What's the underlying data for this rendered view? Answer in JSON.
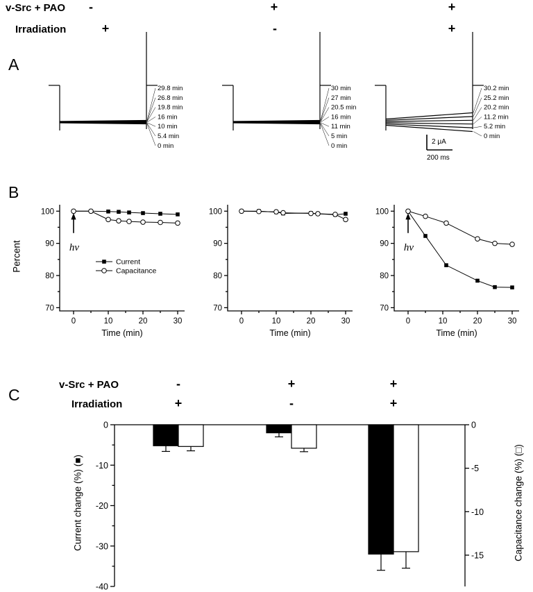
{
  "header": {
    "row1_label": "v-Src + PAO",
    "row2_label": "Irradiation",
    "row1_signs": [
      "-",
      "+",
      "+"
    ],
    "row2_signs": [
      "+",
      "-",
      "+"
    ]
  },
  "panel_labels": {
    "A": "A",
    "B": "B",
    "C": "C"
  },
  "panelA": {
    "scale_bar": {
      "vertical": "2 μA",
      "horizontal": "200 ms"
    },
    "groups": [
      {
        "trace_labels": [
          "29.8 min",
          "26.8 min",
          "19.8 min",
          "16 min",
          "10 min",
          "5.4 min",
          "0 min"
        ],
        "fan": false,
        "has_scale_bar": false
      },
      {
        "trace_labels": [
          "30 min",
          "27 min",
          "20.5 min",
          "16 min",
          "11 min",
          "5 min",
          "0 min"
        ],
        "fan": false,
        "has_scale_bar": false
      },
      {
        "trace_labels": [
          "30.2 min",
          "25.2 min",
          "20.2 min",
          "11.2 min",
          "5.2 min",
          "0 min"
        ],
        "fan": true,
        "has_scale_bar": true
      }
    ]
  },
  "panelC": {
    "row1_label": "v-Src + PAO",
    "row2_label": "Irradiation",
    "row1_signs": [
      "-",
      "+",
      "+"
    ],
    "row2_signs": [
      "+",
      "-",
      "+"
    ]
  },
  "chart_data": [
    {
      "id": "B1",
      "type": "line",
      "xlabel": "Time (min)",
      "ylabel": "Percent",
      "xlim": [
        -4,
        32
      ],
      "ylim": [
        69,
        102
      ],
      "xticks": [
        0,
        10,
        20,
        30
      ],
      "xticks_minor": [
        5,
        15,
        25
      ],
      "yticks": [
        70,
        80,
        90,
        100
      ],
      "yticks_minor": [
        75,
        85,
        95
      ],
      "arrow": {
        "x": 0,
        "label": "hν"
      },
      "legend": [
        {
          "label": "Current",
          "marker": "filled-square"
        },
        {
          "label": "Capacitance",
          "marker": "open-circle"
        }
      ],
      "series": [
        {
          "name": "Current",
          "marker": "filled-square",
          "x": [
            0,
            5,
            10,
            13,
            16,
            20,
            25,
            30
          ],
          "y": [
            100,
            100,
            99.9,
            99.8,
            99.6,
            99.4,
            99.2,
            99.0
          ]
        },
        {
          "name": "Capacitance",
          "marker": "open-circle",
          "x": [
            0,
            5,
            10,
            13,
            16,
            20,
            25,
            30
          ],
          "y": [
            100,
            100,
            97.4,
            97.0,
            96.8,
            96.6,
            96.5,
            96.3
          ]
        }
      ]
    },
    {
      "id": "B2",
      "type": "line",
      "xlabel": "Time (min)",
      "ylabel": "Percent",
      "xlim": [
        -4,
        32
      ],
      "ylim": [
        69,
        102
      ],
      "xticks": [
        0,
        10,
        20,
        30
      ],
      "xticks_minor": [
        5,
        15,
        25
      ],
      "yticks": [
        70,
        80,
        90,
        100
      ],
      "yticks_minor": [
        75,
        85,
        95
      ],
      "series": [
        {
          "name": "Current",
          "marker": "filled-square",
          "x": [
            0,
            5,
            10,
            12,
            20,
            22,
            27,
            30
          ],
          "y": [
            100,
            100,
            99.7,
            99.3,
            99.4,
            99.2,
            98.9,
            99.2
          ]
        },
        {
          "name": "Capacitance",
          "marker": "open-circle",
          "x": [
            0,
            5,
            10,
            12,
            20,
            22,
            27,
            30
          ],
          "y": [
            100,
            99.9,
            99.8,
            99.5,
            99.3,
            99.2,
            99.0,
            97.4
          ]
        }
      ]
    },
    {
      "id": "B3",
      "type": "line",
      "xlabel": "Time (min)",
      "ylabel": "Percent",
      "xlim": [
        -4,
        32
      ],
      "ylim": [
        69,
        102
      ],
      "xticks": [
        0,
        10,
        20,
        30
      ],
      "xticks_minor": [
        5,
        15,
        25
      ],
      "yticks": [
        70,
        80,
        90,
        100
      ],
      "yticks_minor": [
        75,
        85,
        95
      ],
      "arrow": {
        "x": 0,
        "label": "hν"
      },
      "series": [
        {
          "name": "Current",
          "marker": "filled-square",
          "x": [
            0,
            5,
            11,
            20,
            25,
            30
          ],
          "y": [
            100,
            92.3,
            83.2,
            78.4,
            76.4,
            76.3
          ]
        },
        {
          "name": "Capacitance",
          "marker": "open-circle",
          "x": [
            0,
            5,
            11,
            20,
            25,
            30
          ],
          "y": [
            100,
            98.4,
            96.3,
            91.4,
            90.0,
            89.7
          ]
        }
      ]
    },
    {
      "id": "C",
      "type": "bar",
      "group_conditions": {
        "row1": [
          "-",
          "+",
          "+"
        ],
        "row2": [
          "+",
          "-",
          "+"
        ]
      },
      "left_axis": {
        "label": "Current change (%)  (■)",
        "range": [
          0,
          -40
        ],
        "ticks": [
          0,
          -10,
          -20,
          -30,
          -40
        ],
        "ticks_minor": [
          -5,
          -15,
          -25,
          -35
        ]
      },
      "right_axis": {
        "label": "Capacitance change (%) (□)",
        "range": [
          0,
          -18.6
        ],
        "ticks": [
          0,
          -5,
          -10,
          -15
        ]
      },
      "series": [
        {
          "name": "Current change (%)",
          "axis": "left",
          "style": "filled",
          "values": [
            -5.2,
            -2.0,
            -32.0
          ],
          "errors": [
            1.4,
            1.0,
            4.0
          ]
        },
        {
          "name": "Capacitance change (%)",
          "axis": "right",
          "style": "open",
          "values": [
            -2.5,
            -2.7,
            -14.6
          ],
          "errors": [
            0.5,
            0.4,
            1.9
          ]
        }
      ]
    }
  ]
}
